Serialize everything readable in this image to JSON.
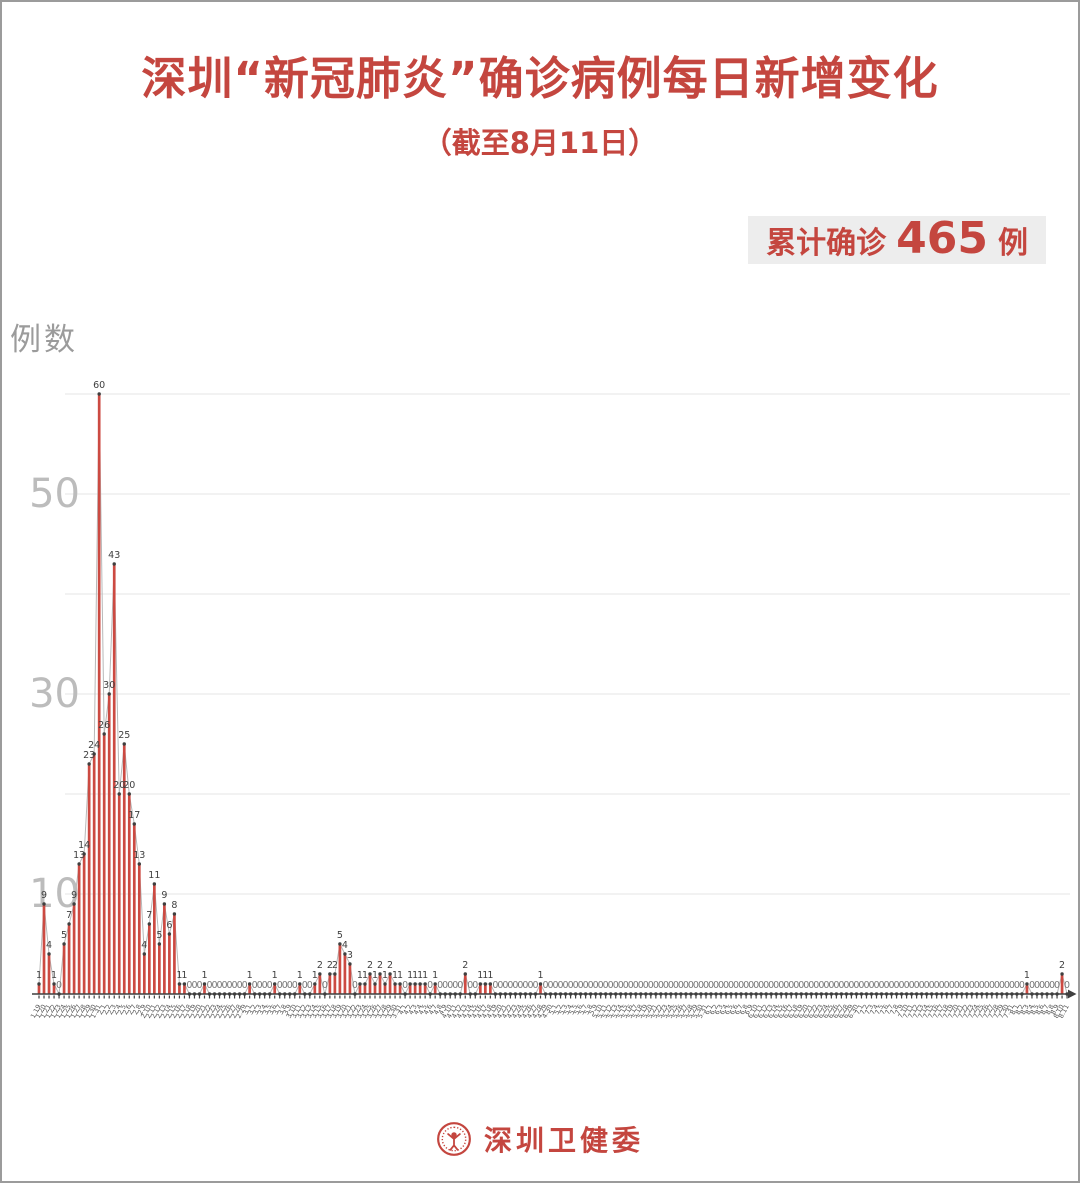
{
  "header": {
    "title": "深圳“新冠肺炎”确诊病例每日新增变化",
    "subtitle": "（截至8月11日）"
  },
  "summary_badge": {
    "label": "累计确诊",
    "value": "465",
    "unit": "例"
  },
  "footer": {
    "logo_icon": "shenzhen-health-commission-seal",
    "org_name": "深圳卫健委"
  },
  "colors": {
    "accent_red": "#c4463f",
    "bar_red": "#cc4a42",
    "badge_bg": "#ededed",
    "grid": "#e6e6e6",
    "axis": "#3f3f3f",
    "connector_line": "#b8b8b8",
    "ytick_text": "#bcbcbc",
    "value_label": "#3f3f3f",
    "zero_label": "#787878",
    "date_label": "#555555",
    "page_border": "#9b9b9b"
  },
  "chart_data": {
    "type": "bar",
    "title": "深圳“新冠肺炎”确诊病例每日新增变化",
    "subtitle": "（截至8月11日）",
    "xlabel": "",
    "ylabel": "例数",
    "total_label": "累计确诊 465 例",
    "total": 465,
    "ylim": [
      0,
      62
    ],
    "ytick_labels": [
      10,
      30,
      50
    ],
    "gridline_values": [
      10,
      20,
      30,
      40,
      50,
      60
    ],
    "grid": true,
    "legend": "none",
    "x": [
      "1.19",
      "1.20",
      "1.21",
      "1.22",
      "1.23",
      "1.24",
      "1.25",
      "1.26",
      "1.27",
      "1.28",
      "1.29",
      "1.30",
      "1.31",
      "2.1",
      "2.2",
      "2.3",
      "2.4",
      "2.5",
      "2.6",
      "2.7",
      "2.8",
      "2.9",
      "2.10",
      "2.11",
      "2.12",
      "2.13",
      "2.14",
      "2.15",
      "2.16",
      "2.17",
      "2.18",
      "2.19",
      "2.20",
      "2.21",
      "2.22",
      "2.23",
      "2.24",
      "2.25",
      "2.26",
      "2.27",
      "2.28",
      "2.29",
      "3.1",
      "3.2",
      "3.3",
      "3.4",
      "3.5",
      "3.6",
      "3.7",
      "3.8",
      "3.9",
      "3.10",
      "3.11",
      "3.12",
      "3.13",
      "3.14",
      "3.15",
      "3.16",
      "3.17",
      "3.18",
      "3.19",
      "3.20",
      "3.21",
      "3.22",
      "3.23",
      "3.24",
      "3.25",
      "3.26",
      "3.27",
      "3.28",
      "3.29",
      "3.30",
      "3.31",
      "4.1",
      "4.2",
      "4.3",
      "4.4",
      "4.5",
      "4.6",
      "4.7",
      "4.8",
      "4.9",
      "4.10",
      "4.11",
      "4.12",
      "4.13",
      "4.14",
      "4.15",
      "4.16",
      "4.17",
      "4.18",
      "4.19",
      "4.20",
      "4.21",
      "4.22",
      "4.23",
      "4.24",
      "4.25",
      "4.26",
      "4.27",
      "4.28",
      "4.29",
      "4.30",
      "5.1",
      "5.2",
      "5.3",
      "5.4",
      "5.5",
      "5.6",
      "5.7",
      "5.8",
      "5.9",
      "5.10",
      "5.11",
      "5.12",
      "5.13",
      "5.14",
      "5.15",
      "5.16",
      "5.17",
      "5.18",
      "5.19",
      "5.20",
      "5.21",
      "5.22",
      "5.23",
      "5.24",
      "5.25",
      "5.26",
      "5.27",
      "5.28",
      "5.29",
      "5.30",
      "5.31",
      "6.1",
      "6.2",
      "6.3",
      "6.4",
      "6.5",
      "6.6",
      "6.7",
      "6.8",
      "6.9",
      "6.10",
      "6.11",
      "6.12",
      "6.13",
      "6.14",
      "6.15",
      "6.16",
      "6.17",
      "6.18",
      "6.19",
      "6.20",
      "6.21",
      "6.22",
      "6.23",
      "6.24",
      "6.25",
      "6.26",
      "6.27",
      "6.28",
      "6.29",
      "6.30",
      "7.1",
      "7.2",
      "7.3",
      "7.4",
      "7.5",
      "7.6",
      "7.7",
      "7.8",
      "7.9",
      "7.10",
      "7.11",
      "7.12",
      "7.13",
      "7.14",
      "7.15",
      "7.16",
      "7.17",
      "7.18",
      "7.19",
      "7.20",
      "7.21",
      "7.22",
      "7.23",
      "7.24",
      "7.25",
      "7.26",
      "7.27",
      "7.28",
      "7.29",
      "7.30",
      "7.31",
      "8.1",
      "8.2",
      "8.3",
      "8.4",
      "8.5",
      "8.6",
      "8.7",
      "8.8",
      "8.9",
      "8.10",
      "8.11"
    ],
    "values": [
      1,
      9,
      4,
      1,
      0,
      5,
      7,
      9,
      13,
      14,
      23,
      24,
      60,
      26,
      30,
      43,
      20,
      25,
      20,
      17,
      13,
      4,
      7,
      11,
      5,
      9,
      6,
      8,
      1,
      1,
      0,
      0,
      0,
      1,
      0,
      0,
      0,
      0,
      0,
      0,
      0,
      0,
      1,
      0,
      0,
      0,
      0,
      1,
      0,
      0,
      0,
      0,
      1,
      0,
      0,
      1,
      2,
      0,
      2,
      2,
      5,
      4,
      3,
      0,
      1,
      1,
      2,
      1,
      2,
      1,
      2,
      1,
      1,
      0,
      1,
      1,
      1,
      1,
      0,
      1,
      0,
      0,
      0,
      0,
      0,
      2,
      0,
      0,
      1,
      1,
      1,
      0,
      0,
      0,
      0,
      0,
      0,
      0,
      0,
      0,
      1,
      0,
      0,
      0,
      0,
      0,
      0,
      0,
      0,
      0,
      0,
      0,
      0,
      0,
      0,
      0,
      0,
      0,
      0,
      0,
      0,
      0,
      0,
      0,
      0,
      0,
      0,
      0,
      0,
      0,
      0,
      0,
      0,
      0,
      0,
      0,
      0,
      0,
      0,
      0,
      0,
      0,
      0,
      0,
      0,
      0,
      0,
      0,
      0,
      0,
      0,
      0,
      0,
      0,
      0,
      0,
      0,
      0,
      0,
      0,
      0,
      0,
      0,
      0,
      0,
      0,
      0,
      0,
      0,
      0,
      0,
      0,
      0,
      0,
      0,
      0,
      0,
      0,
      0,
      0,
      0,
      0,
      0,
      0,
      0,
      0,
      0,
      0,
      0,
      0,
      0,
      0,
      0,
      0,
      0,
      0,
      0,
      1,
      0,
      0,
      0,
      0,
      0,
      0,
      2,
      0
    ]
  }
}
